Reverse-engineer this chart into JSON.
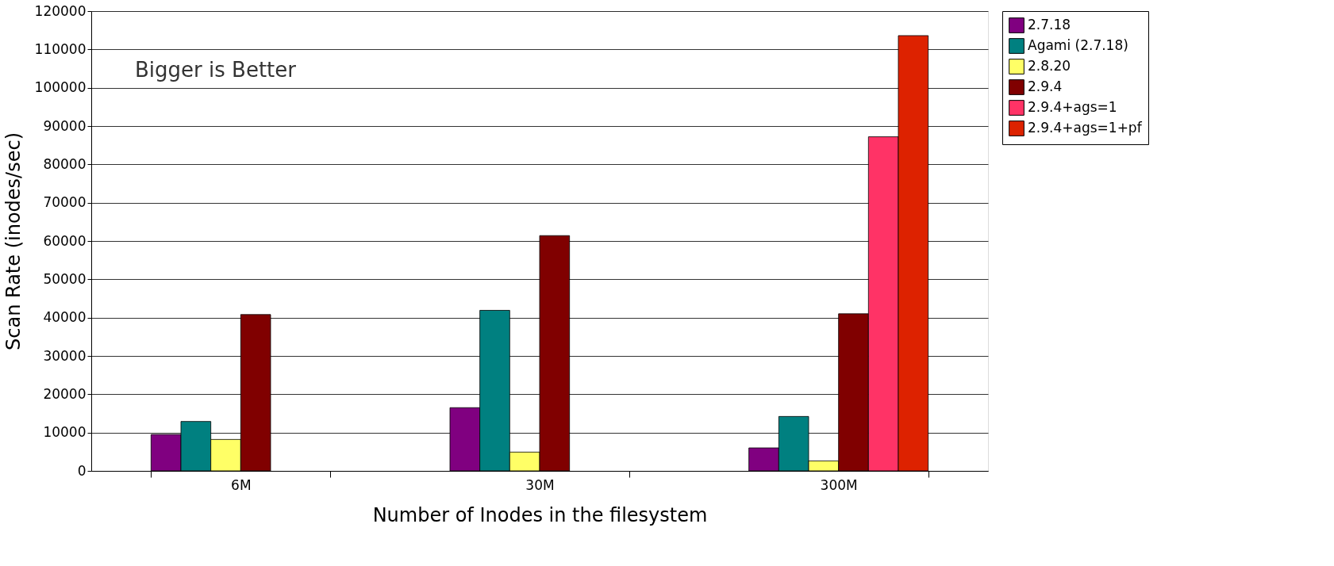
{
  "chart_data": {
    "type": "bar",
    "xlabel": "Number of Inodes in the filesystem",
    "ylabel": "Scan Rate (inodes/sec)",
    "categories": [
      "6M",
      "30M",
      "300M"
    ],
    "series": [
      {
        "name": "2.7.18",
        "color": "#800080",
        "values": [
          9500,
          16500,
          6000
        ]
      },
      {
        "name": "Agami (2.7.18)",
        "color": "#008080",
        "values": [
          12900,
          41900,
          14200
        ]
      },
      {
        "name": "2.8.20",
        "color": "#ffff66",
        "values": [
          8200,
          4900,
          2600
        ]
      },
      {
        "name": "2.9.4",
        "color": "#800000",
        "values": [
          40800,
          61400,
          41000
        ]
      },
      {
        "name": "2.9.4+ags=1",
        "color": "#ff3366",
        "values": [
          null,
          null,
          87200
        ]
      },
      {
        "name": "2.9.4+ags=1+pf",
        "color": "#dd2200",
        "values": [
          null,
          null,
          113600
        ]
      }
    ],
    "ylim": [
      0,
      120000
    ],
    "yticks": [
      0,
      10000,
      20000,
      30000,
      40000,
      50000,
      60000,
      70000,
      80000,
      90000,
      100000,
      110000,
      120000
    ],
    "grid": "y",
    "legend": "right",
    "annotations": [
      "Bigger is Better"
    ]
  }
}
